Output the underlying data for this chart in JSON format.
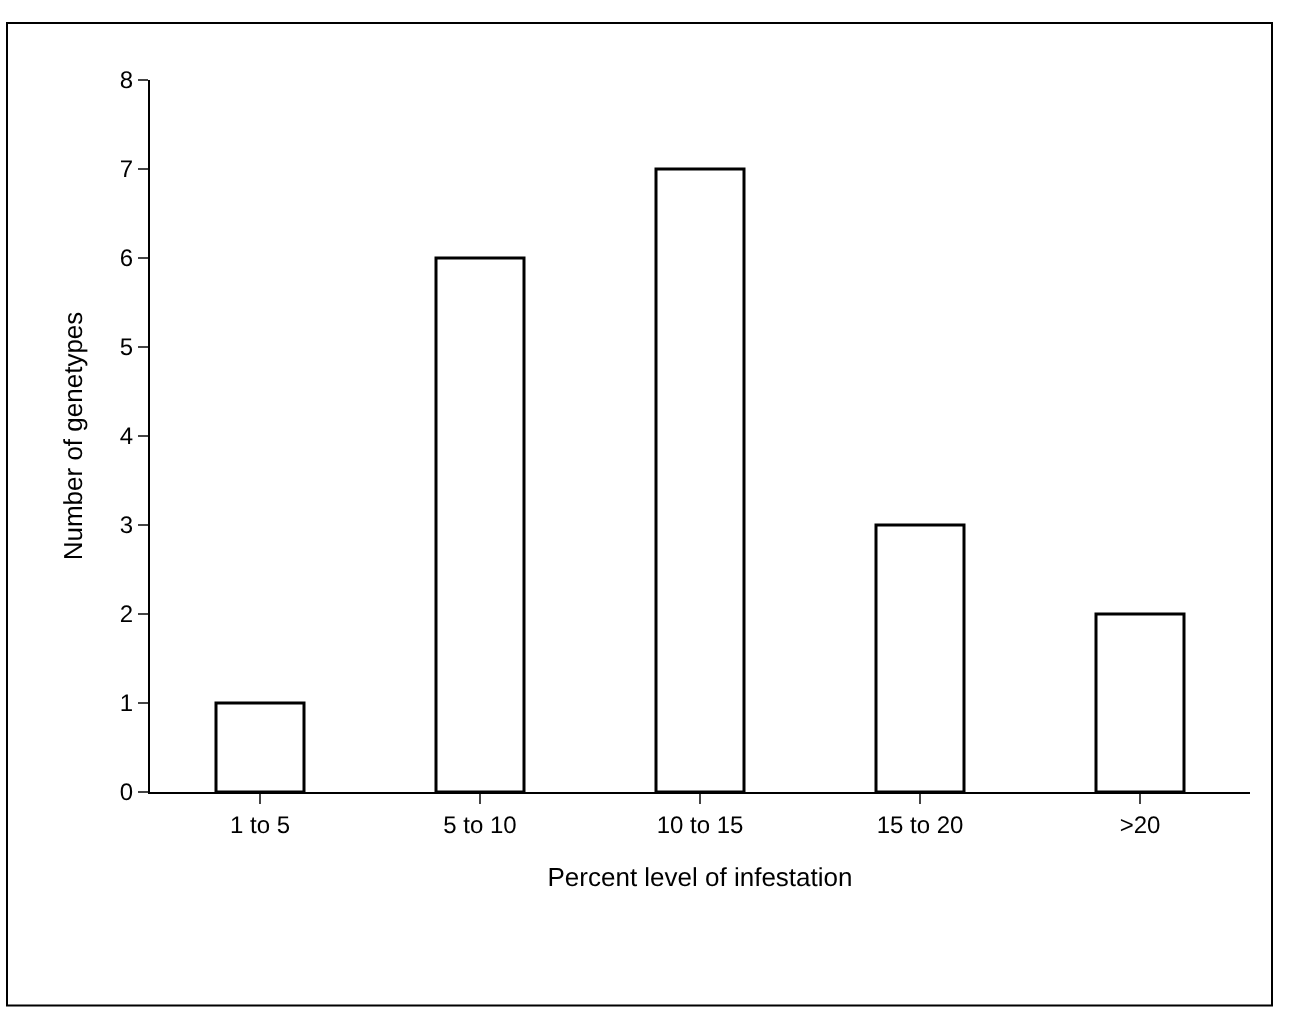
{
  "chart_data": {
    "type": "bar",
    "xlabel": "Percent level of infestation",
    "ylabel": "Number of genetypes",
    "categories": [
      "1 to 5",
      "5 to 10",
      "10 to 15",
      "15 to 20",
      ">20"
    ],
    "values": [
      1,
      6,
      7,
      3,
      2
    ],
    "color": "#ffffff",
    "ylim": [
      0,
      8
    ],
    "yticks": [
      0,
      1,
      2,
      3,
      4,
      5,
      6,
      7,
      8
    ]
  }
}
